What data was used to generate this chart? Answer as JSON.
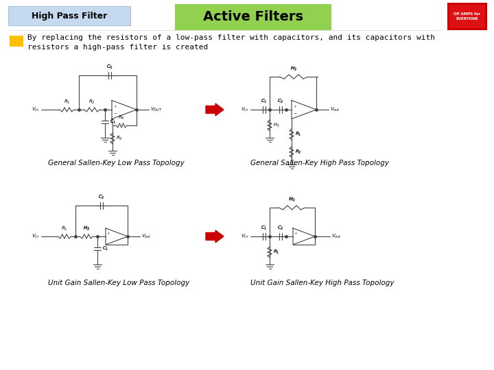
{
  "title": "Active Filters",
  "subtitle": "High Pass Filter",
  "body_text_line1": "By replacing the resistors of a low-pass filter with capacitors, and its capacitors with",
  "body_text_line2": "resistors a high-pass filter is created",
  "caption_lp1": "General Sallen-Key Low Pass Topology",
  "caption_hp1": "General Sallen-Key High Pass Topology",
  "caption_lp2": "Unit Gain Sallen-Key Low Pass Topology",
  "caption_hp2": "Unit Gain Sallen-Key High Pass Topology",
  "bg_color": "#ffffff",
  "header_bg": "#c5d9f1",
  "title_bg": "#92d050",
  "bullet_color": "#ffc000",
  "arrow_color": "#cc0000",
  "circuit_color": "#404040",
  "title_fontsize": 14,
  "subtitle_fontsize": 9,
  "body_fontsize": 8,
  "caption_fontsize": 7.5
}
